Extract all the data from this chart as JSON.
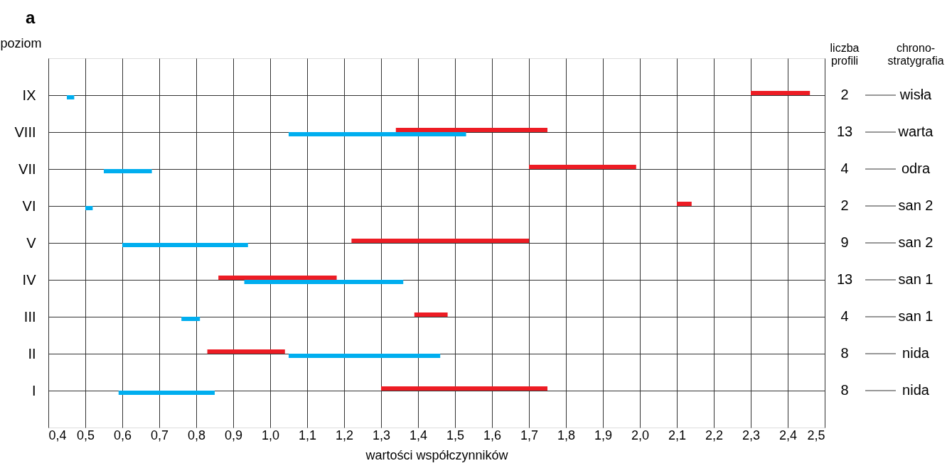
{
  "chart_data": {
    "type": "bar",
    "orientation": "horizontal",
    "title": "a",
    "ylabel": "poziom",
    "xlabel": "wartości współczynników",
    "categories": [
      "IX",
      "VIII",
      "VII",
      "VI",
      "V",
      "IV",
      "III",
      "II",
      "I"
    ],
    "series": [
      {
        "color": "#00aeef",
        "base": [
          0.45,
          1.05,
          0.55,
          0.5,
          0.6,
          0.93,
          0.76,
          1.05,
          0.59
        ],
        "values": [
          0.02,
          0.48,
          0.13,
          0.02,
          0.34,
          0.43,
          0.05,
          0.41,
          0.26
        ]
      },
      {
        "color": "#ed1c24",
        "base": [
          2.3,
          1.34,
          1.7,
          2.1,
          1.22,
          0.86,
          1.39,
          0.83,
          1.3
        ],
        "values": [
          0.16,
          0.41,
          0.29,
          0.04,
          0.48,
          0.32,
          0.09,
          0.21,
          0.45
        ]
      }
    ],
    "xlim": [
      0.4,
      2.5
    ],
    "xticks": [
      {
        "value": 0.4,
        "label": "0,4"
      },
      {
        "value": 0.5,
        "label": "0,5"
      },
      {
        "value": 0.6,
        "label": "0,6"
      },
      {
        "value": 0.7,
        "label": "0,7"
      },
      {
        "value": 0.8,
        "label": "0,8"
      },
      {
        "value": 0.9,
        "label": "0,9"
      },
      {
        "value": 1.0,
        "label": "1,0"
      },
      {
        "value": 1.1,
        "label": "1,1"
      },
      {
        "value": 1.2,
        "label": "1,2"
      },
      {
        "value": 1.3,
        "label": "1,3"
      },
      {
        "value": 1.4,
        "label": "1,4"
      },
      {
        "value": 1.5,
        "label": "1,5"
      },
      {
        "value": 1.6,
        "label": "1,6"
      },
      {
        "value": 1.7,
        "label": "1,7"
      },
      {
        "value": 1.8,
        "label": "1,8"
      },
      {
        "value": 1.9,
        "label": "1,9"
      },
      {
        "value": 2.0,
        "label": "2,0"
      },
      {
        "value": 2.1,
        "label": "2,1"
      },
      {
        "value": 2.2,
        "label": "2,2"
      },
      {
        "value": 2.3,
        "label": "2,3"
      },
      {
        "value": 2.4,
        "label": "2,4"
      },
      {
        "value": 2.5,
        "label": "2,5"
      }
    ],
    "grid": true,
    "legend": false,
    "annotations": [
      "liczba\nprofili",
      "chrono-\nstratygrafia",
      "2",
      "13",
      "4",
      "2",
      "9",
      "13",
      "4",
      "8",
      "8",
      "wisła",
      "warta",
      "odra",
      "san 2",
      "san 2",
      "san 1",
      "san 1",
      "nida",
      "nida"
    ]
  }
}
